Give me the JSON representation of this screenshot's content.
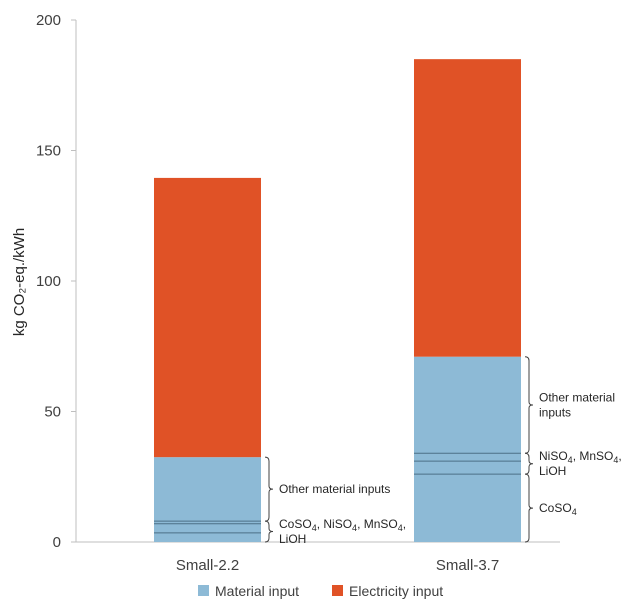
{
  "chart_data": {
    "type": "bar",
    "stacked": true,
    "categories": [
      "Small-2.2",
      "Small-3.7"
    ],
    "series": [
      {
        "name": "Material input",
        "values": [
          32.5,
          71
        ],
        "color": "#8dbad6"
      },
      {
        "name": "Electricity input",
        "values": [
          107,
          114
        ],
        "color": "#e05226"
      }
    ],
    "ylabel": "kg CO₂-eq./kWh",
    "ylim": [
      0,
      200
    ],
    "yticks": [
      0,
      50,
      100,
      150,
      200
    ],
    "legend_position": "bottom",
    "grid": false,
    "sub_segments": [
      {
        "category": "Small-2.2",
        "boundaries": [
          3.5,
          7,
          8
        ]
      },
      {
        "category": "Small-3.7",
        "boundaries": [
          26,
          31,
          34
        ]
      }
    ],
    "annotations": [
      {
        "category": "Small-2.2",
        "from": 8,
        "to": 32.5,
        "lines": [
          "Other material inputs"
        ]
      },
      {
        "category": "Small-2.2",
        "from": 0,
        "to": 8,
        "lines": [
          "CoSO4, NiSO4, MnSO4,",
          "LiOH"
        ]
      },
      {
        "category": "Small-3.7",
        "from": 34,
        "to": 71,
        "lines": [
          "Other material",
          "inputs"
        ]
      },
      {
        "category": "Small-3.7",
        "from": 26,
        "to": 34,
        "lines": [
          "NiSO4, MnSO4,",
          "LiOH"
        ]
      },
      {
        "category": "Small-3.7",
        "from": 0,
        "to": 26,
        "lines": [
          "CoSO4"
        ]
      }
    ]
  }
}
